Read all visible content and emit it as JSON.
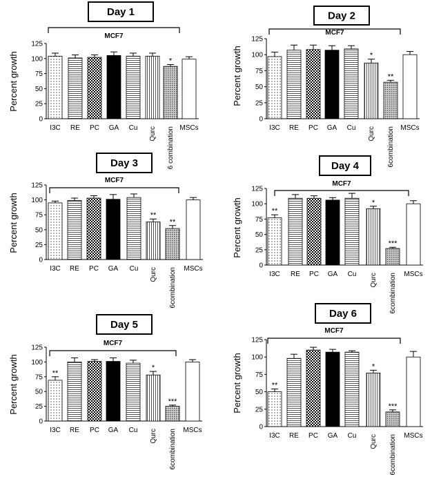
{
  "chart_data": [
    {
      "type": "bar",
      "title": "Day 1",
      "group_label": "MCF7",
      "ylabel": "Percent growth",
      "ylim": [
        0,
        125
      ],
      "yticks": [
        "0",
        "25",
        "50",
        "75",
        "100",
        "125"
      ],
      "categories": [
        "I3C",
        "RE",
        "PC",
        "GA",
        "Cu",
        "Qurc",
        "6 combination",
        "MSCs"
      ],
      "values": [
        104,
        101,
        102,
        105,
        104,
        104,
        87,
        99
      ],
      "errors": [
        5,
        5,
        4,
        6,
        5,
        5,
        3,
        4
      ],
      "significance": [
        "",
        "",
        "",
        "",
        "",
        "",
        "*",
        ""
      ],
      "patterns": [
        "dots",
        "hlines",
        "checker",
        "solid",
        "hlines",
        "vlines",
        "grid",
        "white"
      ]
    },
    {
      "type": "bar",
      "title": "Day 2",
      "group_label": "MCF7",
      "ylabel": "Percent growth",
      "ylim": [
        0,
        125
      ],
      "yticks": [
        "0",
        "25",
        "50",
        "75",
        "100",
        "125"
      ],
      "categories": [
        "I3C",
        "RE",
        "PC",
        "GA",
        "Cu",
        "Qurc",
        "6combination",
        "MSCs"
      ],
      "values": [
        97,
        107,
        108,
        107,
        109,
        87,
        57,
        100
      ],
      "errors": [
        7,
        8,
        7,
        7,
        5,
        6,
        3,
        5
      ],
      "significance": [
        "",
        "",
        "",
        "",
        "",
        "*",
        "**",
        ""
      ],
      "patterns": [
        "dots",
        "hlines",
        "checker",
        "solid",
        "hlines",
        "vlines",
        "grid",
        "white"
      ]
    },
    {
      "type": "bar",
      "title": "Day 3",
      "group_label": "MCF7",
      "ylabel": "Percent growth",
      "ylim": [
        0,
        125
      ],
      "yticks": [
        "0",
        "25",
        "50",
        "75",
        "100",
        "125"
      ],
      "categories": [
        "I3C",
        "RE",
        "PC",
        "GA",
        "Cu",
        "Qurc",
        "6combination",
        "MSCs"
      ],
      "values": [
        95,
        99,
        103,
        101,
        104,
        63,
        52,
        100
      ],
      "errors": [
        3,
        4,
        4,
        8,
        6,
        5,
        5,
        4
      ],
      "significance": [
        "",
        "",
        "",
        "",
        "",
        "**",
        "**",
        ""
      ],
      "patterns": [
        "dots",
        "hlines",
        "checker",
        "solid",
        "hlines",
        "vlines",
        "grid",
        "white"
      ]
    },
    {
      "type": "bar",
      "title": "Day 4",
      "group_label": "MCF7",
      "ylabel": "Percent growth",
      "ylim": [
        0,
        125
      ],
      "yticks": [
        "0",
        "25",
        "50",
        "75",
        "100",
        "125"
      ],
      "categories": [
        "I3C",
        "RE",
        "PC",
        "GA",
        "Cu",
        "Qurc",
        "6combination",
        "MSCs"
      ],
      "values": [
        77,
        109,
        109,
        106,
        109,
        92,
        27,
        100
      ],
      "errors": [
        5,
        6,
        4,
        4,
        8,
        4,
        2,
        5
      ],
      "significance": [
        "**",
        "",
        "",
        "",
        "",
        "*",
        "***",
        ""
      ],
      "patterns": [
        "dots",
        "hlines",
        "checker",
        "solid",
        "hlines",
        "vlines",
        "grid",
        "white"
      ]
    },
    {
      "type": "bar",
      "title": "Day 5",
      "group_label": "MCF7",
      "ylabel": "Percent growth",
      "ylim": [
        0,
        125
      ],
      "yticks": [
        "0",
        "25",
        "50",
        "75",
        "100",
        "125"
      ],
      "categories": [
        "I3C",
        "RE",
        "PC",
        "GA",
        "Cu",
        "Qurc",
        "6combination",
        "MSCs"
      ],
      "values": [
        69,
        100,
        101,
        101,
        98,
        78,
        25,
        100
      ],
      "errors": [
        6,
        7,
        3,
        6,
        5,
        6,
        2,
        4
      ],
      "significance": [
        "**",
        "",
        "",
        "",
        "",
        "*",
        "***",
        ""
      ],
      "patterns": [
        "dots",
        "hlines",
        "checker",
        "solid",
        "hlines",
        "vlines",
        "grid",
        "white"
      ]
    },
    {
      "type": "bar",
      "title": "Day 6",
      "group_label": "MCF7",
      "ylabel": "Percent growth",
      "ylim": [
        0,
        125
      ],
      "yticks": [
        "0",
        "25",
        "50",
        "75",
        "100",
        "125"
      ],
      "categories": [
        "I3C",
        "RE",
        "PC",
        "GA",
        "Cu",
        "Qurc",
        "6combination",
        "MSCs"
      ],
      "values": [
        50,
        98,
        110,
        107,
        107,
        77,
        21,
        100
      ],
      "errors": [
        4,
        6,
        4,
        4,
        2,
        4,
        3,
        8
      ],
      "significance": [
        "**",
        "",
        "",
        "",
        "",
        "*",
        "***",
        ""
      ],
      "patterns": [
        "dots",
        "hlines",
        "checker",
        "solid",
        "hlines",
        "vlines",
        "grid",
        "white"
      ]
    }
  ]
}
